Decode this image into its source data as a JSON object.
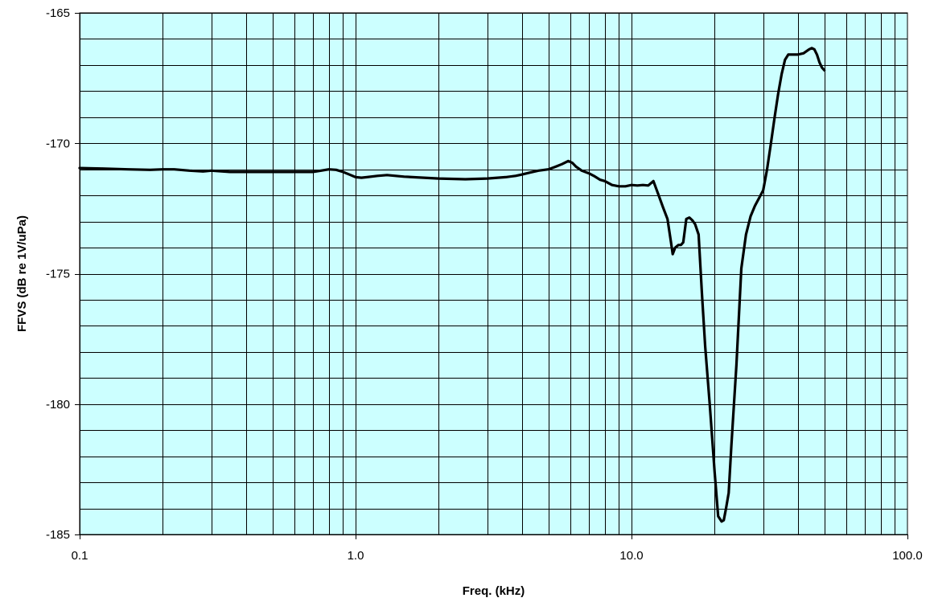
{
  "chart_data": {
    "type": "line",
    "title": "",
    "xlabel": "Freq. (kHz)",
    "ylabel": "FFVS (dB re 1V/uPa)",
    "x_scale": "log",
    "xlim": [
      0.1,
      100
    ],
    "ylim": [
      -185,
      -165
    ],
    "x_ticks": [
      {
        "value": 0.1,
        "label": "0.1"
      },
      {
        "value": 1,
        "label": "1.0"
      },
      {
        "value": 10,
        "label": "10.0"
      },
      {
        "value": 100,
        "label": "100.0"
      }
    ],
    "y_ticks": [
      {
        "value": -165,
        "label": "-165"
      },
      {
        "value": -170,
        "label": "-170"
      },
      {
        "value": -175,
        "label": "-175"
      },
      {
        "value": -180,
        "label": "-180"
      },
      {
        "value": -185,
        "label": "-185"
      }
    ],
    "y_minor_step": 1,
    "grid": true,
    "plot_background": "#ccffff",
    "line_color": "#000000",
    "series": [
      {
        "x": [
          0.1,
          0.12,
          0.15,
          0.18,
          0.2,
          0.22,
          0.25,
          0.28,
          0.3,
          0.35,
          0.4,
          0.5,
          0.6,
          0.7,
          0.75,
          0.8,
          0.85,
          0.9,
          0.95,
          1.0,
          1.05,
          1.1,
          1.2,
          1.3,
          1.5,
          2.0,
          2.5,
          3.0,
          3.5,
          3.8,
          4.0,
          4.3,
          4.6,
          5.0,
          5.3,
          5.6,
          5.9,
          6.1,
          6.3,
          6.6,
          7.0,
          7.3,
          7.7,
          8.0,
          8.5,
          9.0,
          9.5,
          10.0,
          10.5,
          11.0,
          11.5,
          12.0,
          12.3,
          12.6,
          13.0,
          13.5,
          13.9,
          14.1,
          14.4,
          14.8,
          15.1,
          15.4,
          15.8,
          16.2,
          16.6,
          17.0,
          17.5,
          18.0,
          18.5,
          19.2,
          20.0,
          20.6,
          21.2,
          21.6,
          22.0,
          22.5,
          23.0,
          24.0,
          25.0,
          26.0,
          27.0,
          28.0,
          29.0,
          30.0,
          31.0,
          32.0,
          33.0,
          34.0,
          35.0,
          36.0,
          37.0,
          38.0,
          40.0,
          42.0,
          44.0,
          45.0,
          46.0,
          47.0,
          48.0,
          49.0,
          50.0
        ],
        "y": [
          -170.95,
          -170.97,
          -171.0,
          -171.02,
          -171.0,
          -171.0,
          -171.05,
          -171.08,
          -171.05,
          -171.1,
          -171.1,
          -171.1,
          -171.1,
          -171.1,
          -171.05,
          -171.0,
          -171.02,
          -171.1,
          -171.2,
          -171.3,
          -171.32,
          -171.3,
          -171.25,
          -171.22,
          -171.28,
          -171.35,
          -171.38,
          -171.35,
          -171.3,
          -171.25,
          -171.2,
          -171.12,
          -171.05,
          -171.0,
          -170.9,
          -170.8,
          -170.68,
          -170.75,
          -170.9,
          -171.05,
          -171.15,
          -171.25,
          -171.4,
          -171.45,
          -171.6,
          -171.65,
          -171.65,
          -171.6,
          -171.62,
          -171.6,
          -171.62,
          -171.45,
          -171.75,
          -172.05,
          -172.45,
          -172.9,
          -173.8,
          -174.25,
          -174.0,
          -173.9,
          -173.9,
          -173.8,
          -172.9,
          -172.85,
          -172.95,
          -173.1,
          -173.5,
          -175.8,
          -177.8,
          -180.0,
          -182.6,
          -184.3,
          -184.5,
          -184.45,
          -184.0,
          -183.4,
          -181.6,
          -178.5,
          -174.8,
          -173.5,
          -172.8,
          -172.4,
          -172.1,
          -171.8,
          -171.0,
          -170.0,
          -169.0,
          -168.1,
          -167.35,
          -166.8,
          -166.6,
          -166.6,
          -166.6,
          -166.55,
          -166.4,
          -166.35,
          -166.4,
          -166.6,
          -166.9,
          -167.1,
          -167.2
        ]
      }
    ]
  }
}
